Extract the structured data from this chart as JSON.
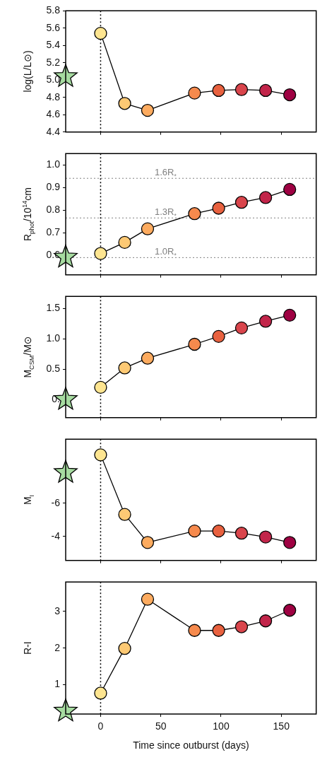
{
  "chart_data": [
    {
      "type": "line",
      "ylabel": "log(L/L⊙)",
      "xlim": [
        -29,
        179
      ],
      "xticks": [
        0,
        50,
        100,
        150
      ],
      "ylim": [
        4.4,
        5.8
      ],
      "yticks": [
        4.4,
        4.6,
        4.8,
        {
          "value": 5,
          "label": "5.0"
        },
        5.2,
        5.4,
        5.6,
        5.8
      ],
      "tick_labels": "y",
      "grid": false,
      "legend": false,
      "ref_lines": [
        {
          "axis": "x",
          "value": 0,
          "color": "#000000",
          "line_style": "dotted"
        }
      ],
      "series": [
        {
          "type": "scatter",
          "marker": "star",
          "color": "#a6dba0",
          "x": [
            -29
          ],
          "values": [
            5.04
          ]
        },
        {
          "type": "line",
          "marker": "circle",
          "color": "#000000",
          "colors": [
            "#fee590",
            "#fdc974",
            "#fdab5f",
            "#f68a4d",
            "#e8613f",
            "#d9454c",
            "#c2254a",
            "#9e0142"
          ],
          "x": [
            0,
            20,
            39,
            78,
            98,
            117,
            137,
            157
          ],
          "values": [
            5.54,
            4.73,
            4.65,
            4.85,
            4.88,
            4.89,
            4.88,
            4.83
          ]
        }
      ]
    },
    {
      "type": "line",
      "ylabel": "R$_{phot}$/10$^{14}$cm",
      "xlim": [
        -29,
        179
      ],
      "xticks": [
        0,
        50,
        100,
        150
      ],
      "ylim": [
        0.515,
        1.05
      ],
      "yticks": [
        0.6,
        0.7,
        0.8,
        0.9,
        {
          "value": 1,
          "label": "1.0"
        }
      ],
      "tick_labels": "y",
      "grid": false,
      "legend": false,
      "ref_lines": [
        {
          "axis": "x",
          "value": 0,
          "color": "#000000",
          "line_style": "dotted"
        },
        {
          "axis": "y",
          "value": 0.941,
          "label": "1.6R$_{*}$",
          "color": "#808080",
          "line_style": "dotted"
        },
        {
          "axis": "y",
          "value": 0.766,
          "label": "1.3R$_{*}$",
          "color": "#808080",
          "line_style": "dotted"
        },
        {
          "axis": "y",
          "value": 0.591,
          "label": "1.0R$_{*}$",
          "color": "#808080",
          "line_style": "dotted"
        }
      ],
      "series": [
        {
          "type": "scatter",
          "marker": "star",
          "color": "#a6dba0",
          "x": [
            -29
          ],
          "values": [
            0.593
          ]
        },
        {
          "type": "line",
          "marker": "circle",
          "color": "#000000",
          "colors": [
            "#fee590",
            "#fdc974",
            "#fdab5f",
            "#f68a4d",
            "#e8613f",
            "#d9454c",
            "#c2254a",
            "#9e0142"
          ],
          "x": [
            0,
            20,
            39,
            78,
            98,
            117,
            137,
            157
          ],
          "values": [
            0.609,
            0.658,
            0.718,
            0.785,
            0.809,
            0.835,
            0.856,
            0.892
          ]
        }
      ]
    },
    {
      "type": "line",
      "ylabel": "M$_{CSM}$/M⊙",
      "xlim": [
        -29,
        179
      ],
      "xticks": [
        0,
        50,
        100,
        150
      ],
      "ylim": [
        -0.3,
        1.7
      ],
      "yticks": [
        {
          "value": 0,
          "label": "0."
        },
        0.5,
        {
          "value": 1,
          "label": "1.0"
        },
        1.5
      ],
      "tick_labels": "y",
      "grid": false,
      "legend": false,
      "ref_lines": [
        {
          "axis": "x",
          "value": 0,
          "color": "#000000",
          "line_style": "dotted"
        }
      ],
      "series": [
        {
          "type": "scatter",
          "marker": "star",
          "color": "#a6dba0",
          "x": [
            -29
          ],
          "values": [
            0.0
          ]
        },
        {
          "type": "line",
          "marker": "circle",
          "color": "#000000",
          "colors": [
            "#fee590",
            "#fdc974",
            "#fdab5f",
            "#f68a4d",
            "#e8613f",
            "#d9454c",
            "#c2254a",
            "#9e0142"
          ],
          "x": [
            0,
            20,
            39,
            78,
            98,
            117,
            137,
            157
          ],
          "values": [
            0.2,
            0.52,
            0.68,
            0.91,
            1.04,
            1.18,
            1.29,
            1.39
          ]
        }
      ]
    },
    {
      "type": "line",
      "ylabel": "M$_{I}$",
      "xlim": [
        -29,
        179
      ],
      "xticks": [
        0,
        50,
        100,
        150
      ],
      "ylim": [
        -2.55,
        -9.85
      ],
      "yticks": [
        {
          "value": -8,
          "label": null
        },
        -6,
        -4
      ],
      "tick_labels": "y",
      "grid": false,
      "legend": false,
      "ref_lines": [
        {
          "axis": "x",
          "value": 0,
          "color": "#000000",
          "line_style": "dotted"
        }
      ],
      "series": [
        {
          "type": "scatter",
          "marker": "star",
          "color": "#a6dba0",
          "x": [
            -29
          ],
          "values": [
            -7.85
          ]
        },
        {
          "type": "line",
          "marker": "circle",
          "color": "#000000",
          "colors": [
            "#fee590",
            "#fdc974",
            "#fdab5f",
            "#f68a4d",
            "#e8613f",
            "#d9454c",
            "#c2254a",
            "#9e0142"
          ],
          "x": [
            0,
            20,
            39,
            78,
            98,
            117,
            137,
            157
          ],
          "values": [
            -8.91,
            -5.32,
            -3.63,
            -4.32,
            -4.32,
            -4.19,
            -3.96,
            -3.63
          ]
        }
      ]
    },
    {
      "type": "line",
      "ylabel": "R-I",
      "xlabel": "Time since outburst (days)",
      "xlim": [
        -29,
        179
      ],
      "xticks": [
        0,
        50,
        100,
        150
      ],
      "ylim": [
        0.2,
        3.8
      ],
      "yticks": [
        1,
        2,
        3
      ],
      "grid": false,
      "legend": false,
      "ref_lines": [
        {
          "axis": "x",
          "value": 0,
          "color": "#000000",
          "line_style": "dotted"
        }
      ],
      "series": [
        {
          "type": "scatter",
          "marker": "star",
          "color": "#a6dba0",
          "x": [
            -29
          ],
          "values": [
            0.28
          ]
        },
        {
          "type": "line",
          "marker": "circle",
          "color": "#000000",
          "colors": [
            "#fee590",
            "#fdc974",
            "#fdab5f",
            "#f68a4d",
            "#e8613f",
            "#d9454c",
            "#c2254a",
            "#9e0142"
          ],
          "x": [
            0,
            20,
            39,
            78,
            98,
            117,
            137,
            157
          ],
          "values": [
            0.77,
            1.99,
            3.33,
            2.48,
            2.48,
            2.58,
            2.74,
            3.03
          ]
        }
      ]
    }
  ]
}
